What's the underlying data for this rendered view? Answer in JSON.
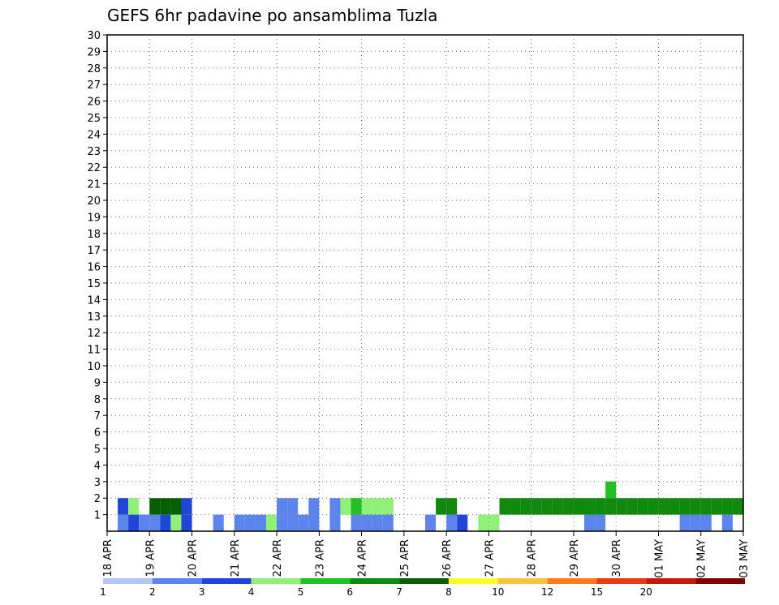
{
  "chart_data": {
    "type": "heatmap",
    "title": "GEFS 6hr padavine po ansamblima Tuzla",
    "x_tick_labels": [
      "18 APR",
      "19 APR",
      "20 APR",
      "21 APR",
      "22 APR",
      "23 APR",
      "24 APR",
      "25 APR",
      "26 APR",
      "27 APR",
      "28 APR",
      "29 APR",
      "30 APR",
      "01 MAY",
      "02 MAY",
      "03 MAY"
    ],
    "y_tick_labels": [
      "1",
      "2",
      "3",
      "4",
      "5",
      "6",
      "7",
      "8",
      "9",
      "10",
      "11",
      "12",
      "13",
      "14",
      "15",
      "16",
      "17",
      "18",
      "19",
      "20",
      "21",
      "22",
      "23",
      "24",
      "25",
      "26",
      "27",
      "28",
      "29",
      "30"
    ],
    "xlim": [
      0,
      60
    ],
    "ylim": [
      0,
      30
    ],
    "grid": true,
    "colorbar": {
      "labels": [
        "1",
        "2",
        "3",
        "4",
        "5",
        "6",
        "7",
        "8",
        "10",
        "12",
        "15",
        "20"
      ],
      "colors": [
        "#b3c6f7",
        "#5b85ec",
        "#1f46d8",
        "#8ff07a",
        "#22c022",
        "#0f8a0f",
        "#056005",
        "#ffff22",
        "#ffc23c",
        "#ff7a1a",
        "#e83a14",
        "#c41a0a",
        "#7d0000"
      ]
    },
    "cells": [
      [
        1,
        0,
        1
      ],
      [
        2,
        0,
        2
      ],
      [
        3,
        0,
        1
      ],
      [
        4,
        0,
        1
      ],
      [
        5,
        0,
        2
      ],
      [
        6,
        0,
        3
      ],
      [
        7,
        0,
        2
      ],
      [
        10,
        0,
        1
      ],
      [
        12,
        0,
        1
      ],
      [
        13,
        0,
        1
      ],
      [
        14,
        0,
        1
      ],
      [
        15,
        0,
        3
      ],
      [
        16,
        0,
        1
      ],
      [
        17,
        0,
        1
      ],
      [
        18,
        0,
        1
      ],
      [
        19,
        0,
        1
      ],
      [
        21,
        0,
        1
      ],
      [
        23,
        0,
        1
      ],
      [
        24,
        0,
        1
      ],
      [
        25,
        0,
        1
      ],
      [
        26,
        0,
        1
      ],
      [
        30,
        0,
        1
      ],
      [
        32,
        0,
        1
      ],
      [
        33,
        0,
        2
      ],
      [
        35,
        0,
        3
      ],
      [
        36,
        0,
        3
      ],
      [
        45,
        0,
        1
      ],
      [
        46,
        0,
        1
      ],
      [
        54,
        0,
        1
      ],
      [
        55,
        0,
        1
      ],
      [
        56,
        0,
        1
      ],
      [
        58,
        0,
        1
      ],
      [
        1,
        1,
        2
      ],
      [
        2,
        1,
        3
      ],
      [
        4,
        1,
        6
      ],
      [
        5,
        1,
        6
      ],
      [
        6,
        1,
        6
      ],
      [
        7,
        1,
        2
      ],
      [
        16,
        1,
        1
      ],
      [
        17,
        1,
        1
      ],
      [
        19,
        1,
        1
      ],
      [
        21,
        1,
        1
      ],
      [
        22,
        1,
        3
      ],
      [
        23,
        1,
        4
      ],
      [
        24,
        1,
        3
      ],
      [
        25,
        1,
        3
      ],
      [
        26,
        1,
        3
      ],
      [
        31,
        1,
        5
      ],
      [
        32,
        1,
        5
      ],
      [
        37,
        1,
        5
      ],
      [
        38,
        1,
        5
      ],
      [
        39,
        1,
        5
      ],
      [
        40,
        1,
        5
      ],
      [
        41,
        1,
        5
      ],
      [
        42,
        1,
        5
      ],
      [
        43,
        1,
        5
      ],
      [
        44,
        1,
        5
      ],
      [
        45,
        1,
        5
      ],
      [
        46,
        1,
        5
      ],
      [
        47,
        1,
        5
      ],
      [
        48,
        1,
        5
      ],
      [
        49,
        1,
        5
      ],
      [
        50,
        1,
        5
      ],
      [
        51,
        1,
        5
      ],
      [
        52,
        1,
        5
      ],
      [
        53,
        1,
        5
      ],
      [
        54,
        1,
        5
      ],
      [
        55,
        1,
        5
      ],
      [
        56,
        1,
        5
      ],
      [
        57,
        1,
        5
      ],
      [
        58,
        1,
        5
      ],
      [
        59,
        1,
        5
      ],
      [
        47,
        2,
        4
      ]
    ],
    "cell_legend": "[time_index, ensemble_member, precip_class]"
  }
}
